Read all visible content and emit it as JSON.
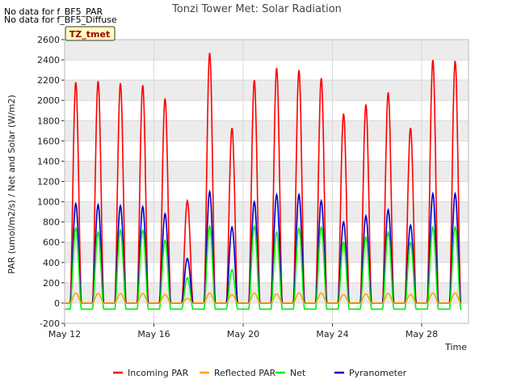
{
  "notes": [
    "No data for f_BF5_PAR",
    "No data for f_BF5_Diffuse"
  ],
  "chart_data": {
    "type": "line",
    "title": "Tonzi Tower Met: Solar Radiation",
    "xlabel": "Time",
    "ylabel": "PAR (umol/m2/s) / Net and Solar (W/m2)",
    "site_tag": "TZ_tmet",
    "xlim": [
      12.0,
      30.1
    ],
    "ylim": [
      -200,
      2600
    ],
    "yticks": [
      -200,
      0,
      200,
      400,
      600,
      800,
      1000,
      1200,
      1400,
      1600,
      1800,
      2000,
      2200,
      2400,
      2600
    ],
    "xticks": [
      {
        "label": "May 12",
        "day": 12
      },
      {
        "label": "May 16",
        "day": 16
      },
      {
        "label": "May 20",
        "day": 20
      },
      {
        "label": "May 24",
        "day": 24
      },
      {
        "label": "May 28",
        "day": 28
      }
    ],
    "grid": true,
    "legend_position": "bottom",
    "colors": {
      "plot_bg_band": "#ececec"
    },
    "days": [
      12,
      13,
      14,
      15,
      16,
      17,
      18,
      19,
      20,
      21,
      22,
      23,
      24,
      25,
      26,
      27,
      28,
      29
    ],
    "series": [
      {
        "name": "Incoming PAR",
        "color": "#ff0000",
        "night": 0,
        "daily_peak": [
          2180,
          2190,
          2170,
          2150,
          2020,
          1010,
          2470,
          1730,
          2200,
          2320,
          2300,
          2220,
          1870,
          1960,
          2080,
          1730,
          2400,
          2390
        ]
      },
      {
        "name": "Reflected PAR",
        "color": "#ffa500",
        "night": 0,
        "daily_peak": [
          100,
          95,
          95,
          95,
          85,
          45,
          100,
          85,
          100,
          90,
          100,
          100,
          85,
          90,
          95,
          85,
          100,
          100
        ]
      },
      {
        "name": "Net",
        "color": "#00ee00",
        "night": -60,
        "daily_peak": [
          740,
          700,
          720,
          720,
          620,
          250,
          760,
          330,
          760,
          700,
          740,
          750,
          600,
          650,
          700,
          600,
          750,
          750
        ]
      },
      {
        "name": "Pyranometer",
        "color": "#0000cc",
        "night": 0,
        "daily_peak": [
          980,
          970,
          960,
          950,
          880,
          440,
          1100,
          750,
          1000,
          1070,
          1070,
          1010,
          800,
          860,
          920,
          770,
          1080,
          1080
        ]
      }
    ]
  }
}
